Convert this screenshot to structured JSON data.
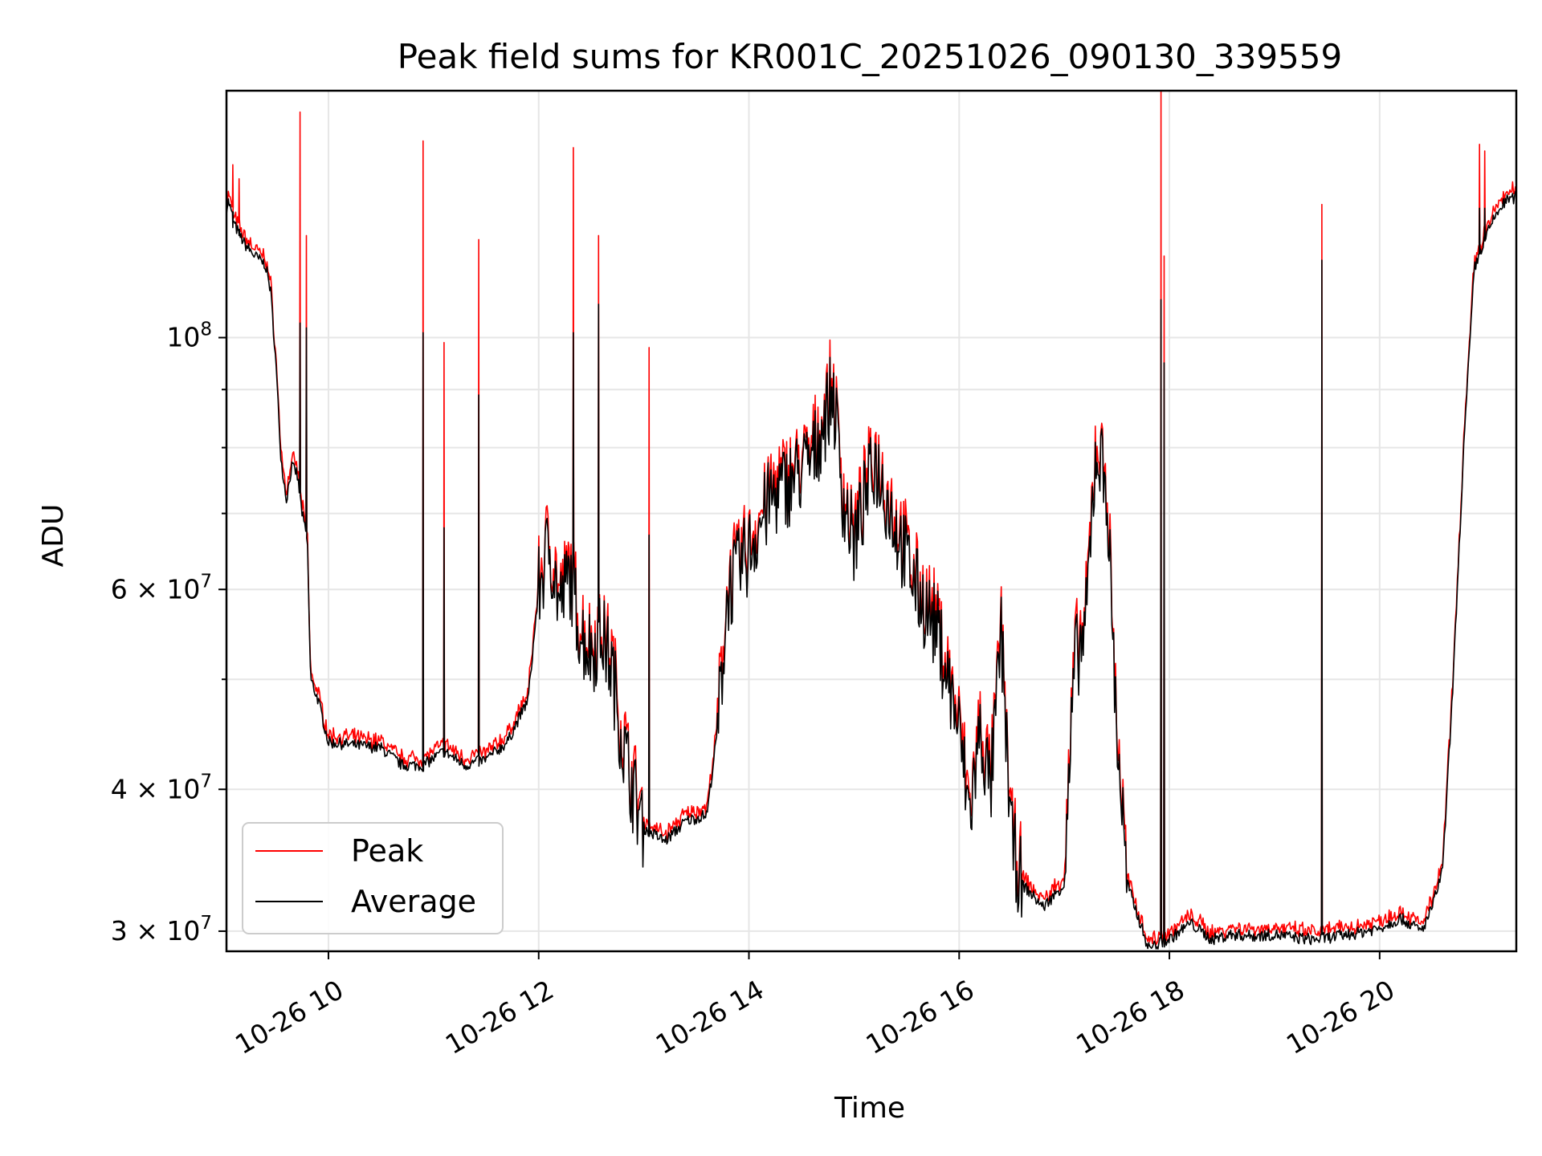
{
  "chart_data": {
    "type": "line",
    "title": "Peak field sums for KR001C_20251026_090130_339559",
    "xlabel": "Time",
    "ylabel": "ADU",
    "yscale": "log",
    "xlim": [
      9.03,
      21.3
    ],
    "ylim": [
      28800000,
      165000000
    ],
    "grid": true,
    "legend_position": "lower-left",
    "x_ticks": [
      {
        "value": 10,
        "label": "10-26 10"
      },
      {
        "value": 12,
        "label": "10-26 12"
      },
      {
        "value": 14,
        "label": "10-26 14"
      },
      {
        "value": 16,
        "label": "10-26 16"
      },
      {
        "value": 18,
        "label": "10-26 18"
      },
      {
        "value": 20,
        "label": "10-26 20"
      }
    ],
    "y_ticks": [
      {
        "value": 30000000,
        "base": "3",
        "exponent": "7",
        "label": "3 × 10^7"
      },
      {
        "value": 40000000,
        "base": "4",
        "exponent": "7",
        "label": "4 × 10^7"
      },
      {
        "value": 60000000,
        "base": "6",
        "exponent": "7",
        "label": "6 × 10^7"
      },
      {
        "value": 100000000,
        "base": "",
        "exponent": "8",
        "label": "10^8"
      }
    ],
    "y_minor_ticks": [
      50000000,
      70000000,
      80000000,
      90000000
    ],
    "series": [
      {
        "name": "Peak",
        "color": "#ff0000"
      },
      {
        "name": "Average",
        "color": "#000000"
      }
    ],
    "average_profile": [
      [
        9.03,
        130000000
      ],
      [
        9.05,
        132000000
      ],
      [
        9.1,
        126000000
      ],
      [
        9.2,
        121000000
      ],
      [
        9.3,
        118000000
      ],
      [
        9.4,
        116000000
      ],
      [
        9.45,
        110000000
      ],
      [
        9.5,
        95000000
      ],
      [
        9.55,
        78000000
      ],
      [
        9.6,
        72000000
      ],
      [
        9.65,
        77000000
      ],
      [
        9.7,
        76000000
      ],
      [
        9.75,
        70000000
      ],
      [
        9.8,
        66000000
      ],
      [
        9.83,
        50000000
      ],
      [
        9.9,
        48000000
      ],
      [
        10.0,
        44000000
      ],
      [
        10.3,
        43700000
      ],
      [
        10.5,
        43500000
      ],
      [
        10.7,
        42000000
      ],
      [
        10.9,
        42000000
      ],
      [
        11.1,
        43200000
      ],
      [
        11.3,
        42000000
      ],
      [
        11.5,
        42500000
      ],
      [
        11.7,
        44000000
      ],
      [
        11.9,
        48000000
      ],
      [
        12.0,
        60000000
      ],
      [
        12.1,
        66000000
      ],
      [
        12.2,
        58000000
      ],
      [
        12.3,
        62000000
      ],
      [
        12.4,
        55000000
      ],
      [
        12.5,
        53000000
      ],
      [
        12.6,
        55000000
      ],
      [
        12.7,
        51000000
      ],
      [
        12.8,
        44000000
      ],
      [
        12.9,
        40000000
      ],
      [
        13.0,
        37000000
      ],
      [
        13.2,
        36000000
      ],
      [
        13.4,
        37500000
      ],
      [
        13.6,
        38000000
      ],
      [
        13.7,
        45000000
      ],
      [
        13.8,
        60000000
      ],
      [
        14.0,
        65000000
      ],
      [
        14.2,
        72000000
      ],
      [
        14.4,
        75000000
      ],
      [
        14.6,
        78000000
      ],
      [
        14.8,
        90000000
      ],
      [
        14.9,
        72000000
      ],
      [
        15.0,
        66000000
      ],
      [
        15.1,
        72000000
      ],
      [
        15.2,
        78000000
      ],
      [
        15.4,
        68000000
      ],
      [
        15.6,
        60000000
      ],
      [
        15.8,
        55000000
      ],
      [
        16.0,
        45000000
      ],
      [
        16.1,
        38000000
      ],
      [
        16.2,
        45000000
      ],
      [
        16.3,
        40000000
      ],
      [
        16.4,
        55000000
      ],
      [
        16.5,
        36000000
      ],
      [
        16.6,
        33000000
      ],
      [
        16.8,
        31500000
      ],
      [
        17.0,
        33000000
      ],
      [
        17.1,
        52000000
      ],
      [
        17.2,
        55000000
      ],
      [
        17.3,
        80000000
      ],
      [
        17.4,
        75000000
      ],
      [
        17.5,
        45000000
      ],
      [
        17.6,
        33000000
      ],
      [
        17.8,
        29000000
      ],
      [
        18.0,
        29500000
      ],
      [
        18.2,
        30500000
      ],
      [
        18.4,
        29500000
      ],
      [
        18.6,
        29800000
      ],
      [
        18.8,
        29700000
      ],
      [
        19.0,
        29800000
      ],
      [
        19.2,
        29600000
      ],
      [
        19.4,
        29500000
      ],
      [
        19.6,
        29700000
      ],
      [
        19.8,
        29900000
      ],
      [
        20.0,
        30200000
      ],
      [
        20.2,
        30800000
      ],
      [
        20.4,
        30000000
      ],
      [
        20.5,
        31500000
      ],
      [
        20.6,
        34000000
      ],
      [
        20.7,
        50000000
      ],
      [
        20.8,
        80000000
      ],
      [
        20.9,
        115000000
      ],
      [
        21.0,
        122000000
      ],
      [
        21.1,
        128000000
      ],
      [
        21.2,
        132000000
      ],
      [
        21.3,
        133000000
      ]
    ],
    "peak_spikes": [
      {
        "x": 9.09,
        "peak": 142000000,
        "average": 125000000
      },
      {
        "x": 9.15,
        "peak": 138000000,
        "average": 123000000
      },
      {
        "x": 9.73,
        "peak": 158000000,
        "average": 103000000
      },
      {
        "x": 9.79,
        "peak": 123000000,
        "average": 102000000
      },
      {
        "x": 10.9,
        "peak": 149000000,
        "average": 101000000
      },
      {
        "x": 11.1,
        "peak": 99000000,
        "average": 68000000
      },
      {
        "x": 11.43,
        "peak": 122000000,
        "average": 89000000
      },
      {
        "x": 12.33,
        "peak": 147000000,
        "average": 101000000
      },
      {
        "x": 12.57,
        "peak": 123000000,
        "average": 107000000
      },
      {
        "x": 13.05,
        "peak": 98000000,
        "average": 67000000
      },
      {
        "x": 17.92,
        "peak": 165000000,
        "average": 108000000
      },
      {
        "x": 17.95,
        "peak": 118000000,
        "average": 95000000
      },
      {
        "x": 19.45,
        "peak": 131000000,
        "average": 117000000
      },
      {
        "x": 20.95,
        "peak": 148000000,
        "average": 130000000
      },
      {
        "x": 21.0,
        "peak": 146000000,
        "average": 130000000
      }
    ]
  }
}
